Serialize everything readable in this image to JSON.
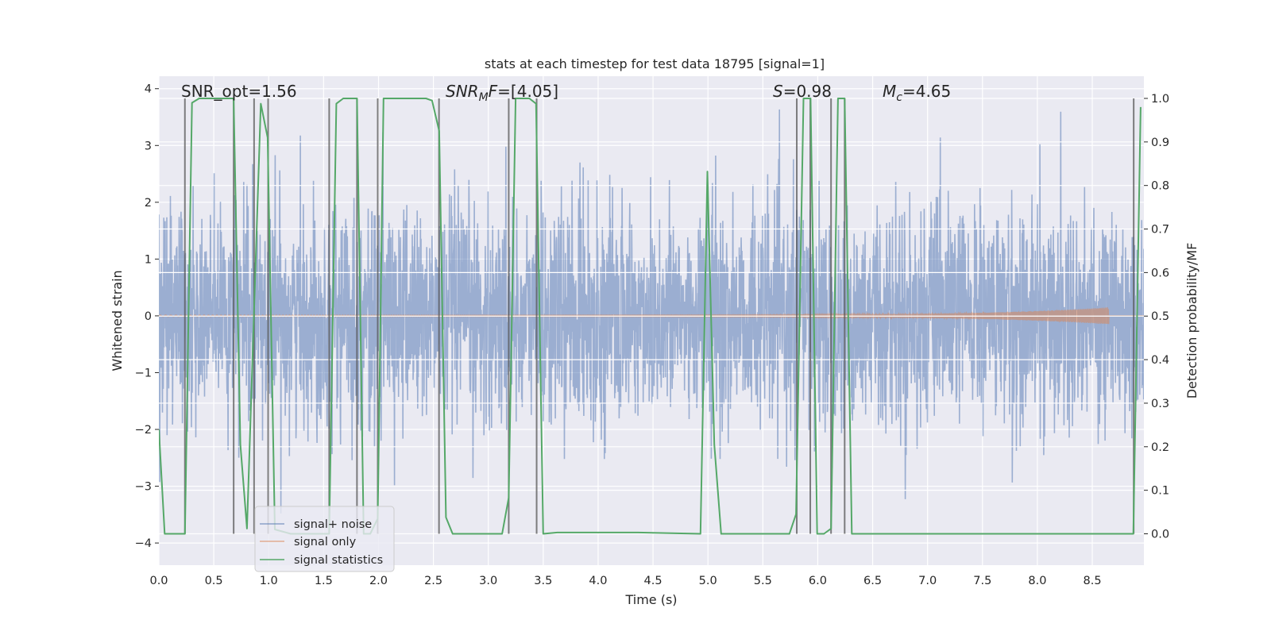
{
  "chart_data": {
    "type": "line",
    "title": "stats at each timestep for test data 18795 [signal=1]",
    "xlabel": "Time (s)",
    "ylabel": "Whitened strain",
    "y2label": "Detection probability/MF",
    "xlim": [
      0,
      8.97
    ],
    "ylim": [
      -4.39,
      4.22
    ],
    "y2lim": [
      -0.072,
      1.051
    ],
    "grid": true,
    "background": "#eaeaf2",
    "xticks": [
      "0.0",
      "0.5",
      "1.0",
      "1.5",
      "2.0",
      "2.5",
      "3.0",
      "3.5",
      "4.0",
      "4.5",
      "5.0",
      "5.5",
      "6.0",
      "6.5",
      "7.0",
      "7.5",
      "8.0",
      "8.5"
    ],
    "yticks": [
      "−4",
      "−3",
      "−2",
      "−1",
      "0",
      "1",
      "2",
      "3",
      "4"
    ],
    "y2ticks": [
      "0.0",
      "0.1",
      "0.2",
      "0.3",
      "0.4",
      "0.5",
      "0.6",
      "0.7",
      "0.8",
      "0.9",
      "1.0"
    ],
    "legend_placement": "lower-left",
    "legend": [
      {
        "label": "signal+ noise",
        "color": "#4c72b0"
      },
      {
        "label": "signal only",
        "color": "#dd8452"
      },
      {
        "label": "signal statistics",
        "color": "#55a868"
      }
    ],
    "series": [
      {
        "name": "signal+ noise",
        "axis": "left",
        "color": "#4c72b0",
        "alpha": 0.5,
        "range": [
          -3.9,
          3.7
        ]
      },
      {
        "name": "signal only",
        "axis": "left",
        "color": "#dd8452",
        "alpha": 0.5,
        "peak_time": 8.65,
        "peak_amplitude": 0.15
      },
      {
        "name": "signal statistics",
        "axis": "right",
        "color": "#55a868",
        "x": [
          0,
          0.053,
          0.237,
          0.302,
          0.367,
          0.681,
          0.742,
          0.802,
          0.928,
          0.99,
          1.056,
          1.2,
          1.551,
          1.616,
          1.679,
          1.804,
          1.865,
          1.925,
          1.993,
          2.046,
          2.432,
          2.488,
          2.553,
          2.614,
          2.675,
          3.126,
          3.186,
          3.249,
          3.374,
          3.435,
          3.5,
          3.628,
          4.365,
          4.932,
          4.995,
          5.058,
          5.12,
          5.742,
          5.802,
          5.87,
          5.935,
          5.995,
          6.056,
          6.121,
          6.184,
          6.245,
          6.31,
          8.874,
          8.94
        ],
        "y": [
          0.24,
          0,
          0,
          0.99,
          1,
          1,
          0.205,
          0.012,
          0.988,
          0.91,
          0.01,
          0,
          0,
          0.988,
          1,
          1,
          0,
          0,
          0.035,
          1,
          1,
          0.995,
          0.925,
          0.038,
          0,
          0,
          0.083,
          1,
          1,
          0.988,
          0,
          0.003,
          0.003,
          0,
          0.832,
          0.205,
          0,
          0,
          0.045,
          1,
          1,
          0,
          0,
          0.012,
          1,
          1,
          0,
          0,
          0.98
        ]
      }
    ],
    "vertical_lines": {
      "color": "#555555",
      "y_range": [
        0,
        1
      ],
      "x": [
        0.237,
        0.681,
        0.867,
        0.995,
        1.551,
        1.804,
        1.993,
        2.551,
        3.186,
        3.44,
        5.809,
        5.932,
        6.121,
        6.245,
        8.877
      ]
    },
    "annotations": {
      "snr_opt": "SNR_opt=1.56",
      "snr_mf": {
        "base": "SNR",
        "sub": "M",
        "italic_tail": "F",
        "rest": "=[4.05]"
      },
      "s": {
        "base": "S",
        "rest": "=0.98"
      },
      "mc": {
        "base": "M",
        "sub": "c",
        "rest": "=4.65"
      }
    }
  }
}
